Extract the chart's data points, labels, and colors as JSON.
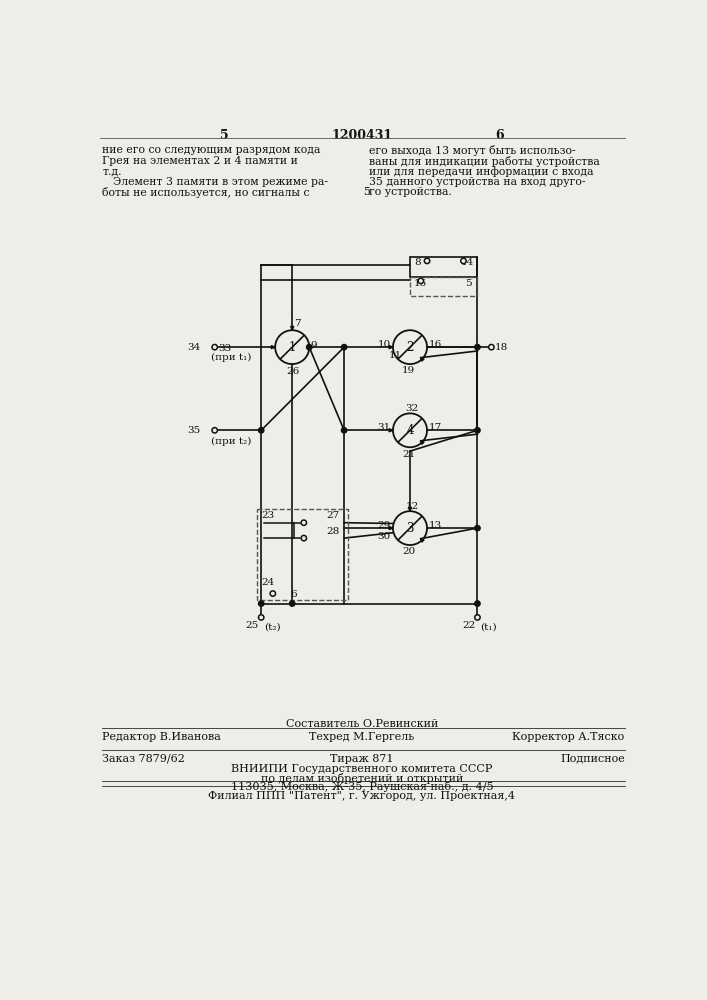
{
  "bg_color": "#eeede8",
  "text_color": "#111111",
  "page_num_left": "5",
  "page_num_center": "1200431",
  "page_num_right": "6",
  "text_left_lines": [
    "ние его со следующим разрядом кода",
    "Грея на элементах 2 и 4 памяти и",
    "т.д.",
    "    Элемент 3 памяти в этом режиме ра-",
    "боты не используется, но сигналы с"
  ],
  "text_right_lines": [
    "его выхода 13 могут быть использо-",
    "ваны для индикации работы устройства",
    "или для передачи информации с входа",
    "35 данного устройства на вход друго-",
    "го устройства."
  ],
  "footer_composer": "Составитель О.Ревинский",
  "footer_editor": "Редактор В.Иванова",
  "footer_techred": "Техред М.Гергель",
  "footer_corrector": "Корректор А.Тяско",
  "footer_order": "Заказ 7879/62",
  "footer_print": "Тираж 871",
  "footer_subscription": "Подписное",
  "footer_org1": "ВНИИПИ Государственного комитета СССР",
  "footer_org2": "по делам изобретений и открытий",
  "footer_org3": "113035, Москва, Ж-35, Раушская наб., д. 4/5",
  "footer_branch": "Филиал ППП \"Патент\", г. Ужгород, ул. Проектная,4"
}
